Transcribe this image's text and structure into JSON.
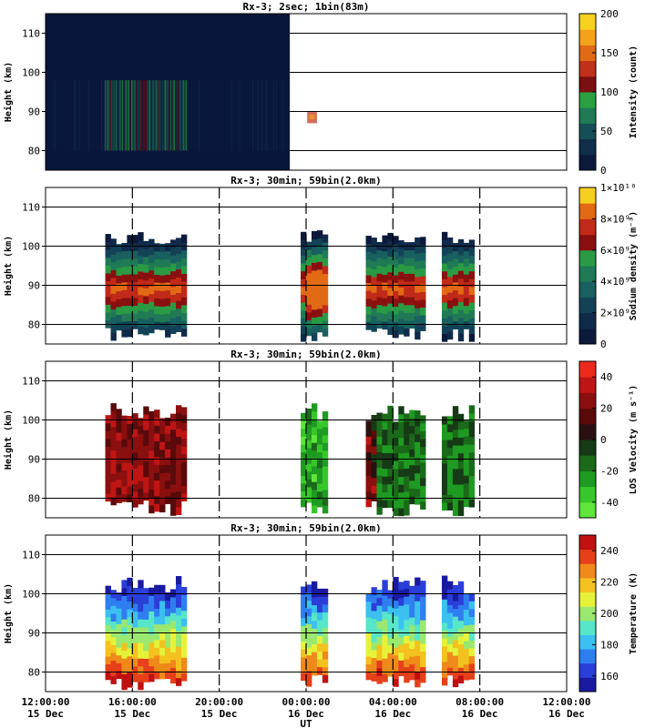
{
  "xaxis": {
    "label": "UT",
    "range_hours": [
      0,
      48
    ],
    "ticks": [
      {
        "h": 0,
        "l1": "12:00:00",
        "l2": "15 Dec"
      },
      {
        "h": 8,
        "l1": "16:00:00",
        "l2": "15 Dec"
      },
      {
        "h": 16,
        "l1": "20:00:00",
        "l2": "15 Dec"
      },
      {
        "h": 24,
        "l1": "00:00:00",
        "l2": "16 Dec"
      },
      {
        "h": 32,
        "l1": "04:00:00",
        "l2": "16 Dec"
      },
      {
        "h": 40,
        "l1": "08:00:00",
        "l2": "16 Dec"
      },
      {
        "h": 48,
        "l1": "12:00:00",
        "l2": "16 Dec"
      }
    ]
  },
  "chart_data": [
    {
      "type": "heatmap",
      "title": "Rx-3;  2sec; 1bin(83m)",
      "ylabel": "Height (km)",
      "ylim": [
        75,
        115
      ],
      "yticks": [
        80,
        90,
        100,
        110
      ],
      "colorbar": {
        "label": "Intensity (count)",
        "range": [
          0,
          200
        ],
        "ticks": [
          {
            "v": 0,
            "t": "0"
          },
          {
            "v": 50,
            "t": "50"
          },
          {
            "v": 100,
            "t": "100"
          },
          {
            "v": 150,
            "t": "150"
          },
          {
            "v": 200,
            "t": "200"
          }
        ]
      },
      "data_segments_hours": [
        [
          0,
          22.5
        ]
      ],
      "layer_peak_km": 88,
      "grid": "horizontal, right of data only"
    },
    {
      "type": "heatmap",
      "title": "Rx-3; 30min; 59bin(2.0km)",
      "ylabel": "Height (km)",
      "ylim": [
        75,
        115
      ],
      "yticks": [
        80,
        90,
        100,
        110
      ],
      "colorbar": {
        "label": "Sodium density (m⁻³)",
        "range": [
          0,
          10000000000.0
        ],
        "ticks": [
          {
            "v": 0,
            "t": "0"
          },
          {
            "v": 2000000000.0,
            "t": "2×10⁹"
          },
          {
            "v": 4000000000.0,
            "t": "4×10⁹"
          },
          {
            "v": 6000000000.0,
            "t": "6×10⁹"
          },
          {
            "v": 8000000000.0,
            "t": "8×10⁹"
          },
          {
            "v": 10000000000.0,
            "t": "1×10¹⁰"
          }
        ]
      },
      "data_segments_hours": [
        [
          5.5,
          13
        ],
        [
          23.5,
          26
        ],
        [
          29.5,
          35
        ],
        [
          36.5,
          39.5
        ]
      ],
      "layer_peak_km": 88,
      "grid": "horizontal + dashed vertical"
    },
    {
      "type": "heatmap",
      "title": "Rx-3; 30min; 59bin(2.0km)",
      "ylabel": "Height (km)",
      "ylim": [
        75,
        115
      ],
      "yticks": [
        80,
        90,
        100,
        110
      ],
      "colorbar": {
        "label": "LOS Velocity (m s⁻¹)",
        "range": [
          -50,
          50
        ],
        "ticks": [
          {
            "v": -40,
            "t": "-40"
          },
          {
            "v": -20,
            "t": "-20"
          },
          {
            "v": 0,
            "t": "0"
          },
          {
            "v": 20,
            "t": "20"
          },
          {
            "v": 40,
            "t": "40"
          }
        ]
      },
      "data_segments_hours": [
        [
          5.5,
          13
        ],
        [
          23.5,
          26
        ],
        [
          29.5,
          35
        ],
        [
          36.5,
          39.5
        ]
      ],
      "grid": "horizontal + dashed vertical"
    },
    {
      "type": "heatmap",
      "title": "Rx-3; 30min; 59bin(2.0km)",
      "ylabel": "Height (km)",
      "ylim": [
        75,
        115
      ],
      "yticks": [
        80,
        90,
        100,
        110
      ],
      "colorbar": {
        "label": "Temperature (K)",
        "range": [
          150,
          250
        ],
        "ticks": [
          {
            "v": 160,
            "t": "160"
          },
          {
            "v": 180,
            "t": "180"
          },
          {
            "v": 200,
            "t": "200"
          },
          {
            "v": 220,
            "t": "220"
          },
          {
            "v": 240,
            "t": "240"
          }
        ]
      },
      "data_segments_hours": [
        [
          5.5,
          13
        ],
        [
          23.5,
          26
        ],
        [
          29.5,
          35
        ],
        [
          36.5,
          39.5
        ]
      ],
      "grid": "horizontal + dashed vertical"
    }
  ]
}
